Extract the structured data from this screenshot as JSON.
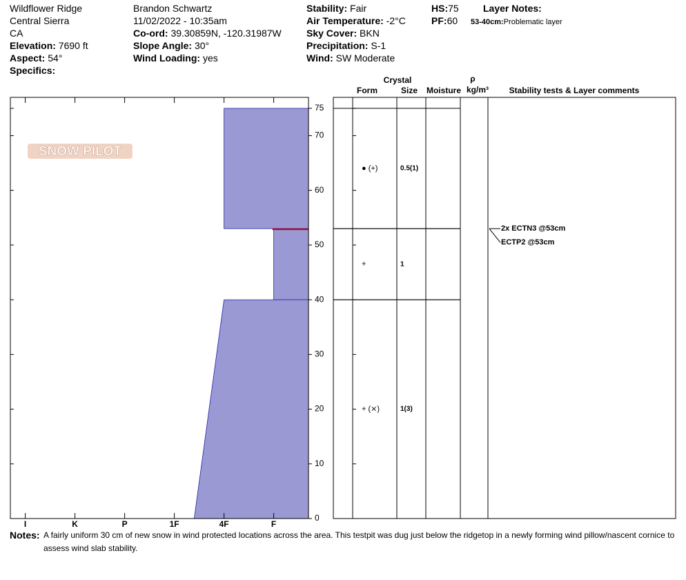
{
  "header": {
    "columns": [
      [
        "Wildflower Ridge",
        "Central Sierra",
        "CA",
        {
          "label": "Elevation:",
          "value": "7690 ft"
        },
        {
          "label": "Aspect:",
          "value": "54°"
        },
        {
          "label": "Specifics:"
        }
      ],
      [
        "Brandon Schwartz",
        "11/02/2022 - 10:35am",
        {
          "label": "Co-ord:",
          "value": "39.30859N, -120.31987W"
        },
        {
          "label": "Slope Angle:",
          "value": "30°"
        },
        {
          "label": "Wind Loading:",
          "value": "yes"
        }
      ],
      [
        {
          "label": "Stability:",
          "value": "Fair"
        },
        {
          "label": "Air Temperature:",
          "value": "-2°C"
        },
        {
          "label": "Sky Cover:",
          "value": "BKN"
        },
        {
          "label": "Precipitation:",
          "value": "S-1"
        },
        {
          "label": "Wind:",
          "value": "SW Moderate"
        }
      ],
      [
        {
          "label": "HS:",
          "value": "75"
        },
        {
          "label": "PF:",
          "value": "60"
        }
      ]
    ],
    "layer_notes": {
      "title": "Layer Notes:",
      "notes": [
        {
          "label": "53-40cm:",
          "value": "Problematic layer"
        }
      ]
    }
  },
  "logo": "SNOW PILOT",
  "chart_data": {
    "type": "snow-profile",
    "ylim": [
      0,
      77
    ],
    "yticks": [
      0,
      10,
      20,
      30,
      40,
      50,
      60,
      70,
      75
    ],
    "xlim": [
      0.7,
      6.7
    ],
    "xticks": [
      {
        "value": 1,
        "label": "I"
      },
      {
        "value": 2,
        "label": "K"
      },
      {
        "value": 3,
        "label": "P"
      },
      {
        "value": 4,
        "label": "1F"
      },
      {
        "value": 5,
        "label": "4F"
      },
      {
        "value": 6,
        "label": "F"
      }
    ],
    "color": "#9a99d4",
    "problem_color": "#cc0000",
    "columns": {
      "crystal": "Crystal",
      "form": "Form",
      "size": "Size",
      "moisture": "Moisture",
      "rho": "ρ",
      "density_unit": "kg/m³",
      "comments": "Stability tests & Layer comments"
    },
    "layers": [
      {
        "top": 75,
        "bottom": 53,
        "hardness_top": 5,
        "hardness_bottom": 5,
        "form": "● (+)",
        "size": "0.5(1)"
      },
      {
        "top": 53,
        "bottom": 40,
        "hardness_top": 6,
        "hardness_bottom": 6,
        "form": "+",
        "size": "1"
      },
      {
        "top": 40,
        "bottom": 0,
        "hardness_top": 5,
        "hardness_bottom": 4.4,
        "form": "+ (⨯)",
        "size": "1(3)"
      }
    ],
    "tests": [
      {
        "text": "2x ECTN3 @53cm",
        "depth": 53
      },
      {
        "text": "ECTP2 @53cm",
        "depth": 53
      }
    ]
  },
  "notes": {
    "label": "Notes:",
    "text": "A fairly uniform 30 cm of new snow in wind protected locations across the area. This testpit was dug just below the ridgetop in a newly forming wind pillow/nascent cornice to assess wind slab stability."
  }
}
